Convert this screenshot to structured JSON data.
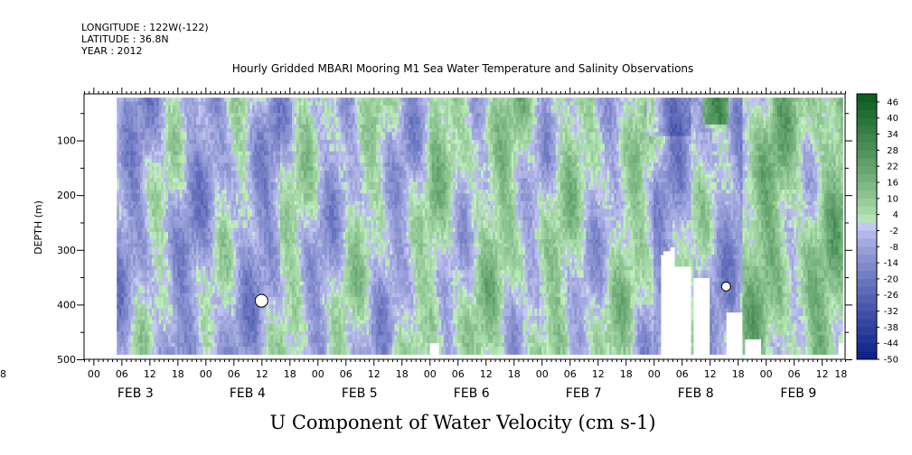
{
  "header": {
    "longitude": "LONGITUDE : 122W(-122)",
    "latitude": "LATITUDE : 36.8N",
    "year": "YEAR : 2012"
  },
  "chart_data": {
    "type": "heatmap",
    "title": "Hourly Gridded MBARI Mooring M1 Sea Water Temperature and Salinity Observations",
    "variable_title": "U Component of Water Velocity (cm s-1)",
    "ylabel": "DEPTH (m)",
    "y_ticks": [
      100,
      200,
      300,
      400,
      500
    ],
    "ylim": [
      500,
      15
    ],
    "y_inverted": true,
    "x_hour_labels": [
      "00",
      "06",
      "12",
      "18",
      "00",
      "06",
      "12",
      "18",
      "00",
      "06",
      "12",
      "18",
      "00",
      "06",
      "12",
      "18",
      "00",
      "06",
      "12",
      "18",
      "00",
      "06",
      "12",
      "18",
      "00",
      "06",
      "12",
      "18",
      "18"
    ],
    "x_day_labels": [
      "FEB 3",
      "FEB 4",
      "FEB 5",
      "FEB 6",
      "FEB 7",
      "FEB 8",
      "FEB 9"
    ],
    "x_range_hours": [
      -2,
      161
    ],
    "data_start_hour": 5,
    "colorbar": {
      "labels": [
        "46",
        "40",
        "34",
        "28",
        "22",
        "16",
        "10",
        "4",
        "-2",
        "-8",
        "-14",
        "-20",
        "-26",
        "-32",
        "-38",
        "-44",
        "-50"
      ],
      "min": -50,
      "max": 49,
      "colors": {
        "neg_dark": "#0b1f8a",
        "neg_light": "#c9ccf4",
        "pos_light": "#c6f2c3",
        "pos_dark": "#0a5a1e"
      }
    },
    "field": {
      "description_regimes": [
        {
          "hours": [
            5,
            40
          ],
          "mean": -6
        },
        {
          "hours": [
            40,
            72
          ],
          "mean": -2
        },
        {
          "hours": [
            72,
            96
          ],
          "mean": 3
        },
        {
          "hours": [
            96,
            120
          ],
          "mean": 1
        },
        {
          "hours": [
            120,
            139
          ],
          "mean": -5
        },
        {
          "hours": [
            139,
            161
          ],
          "mean": 8
        }
      ]
    }
  }
}
